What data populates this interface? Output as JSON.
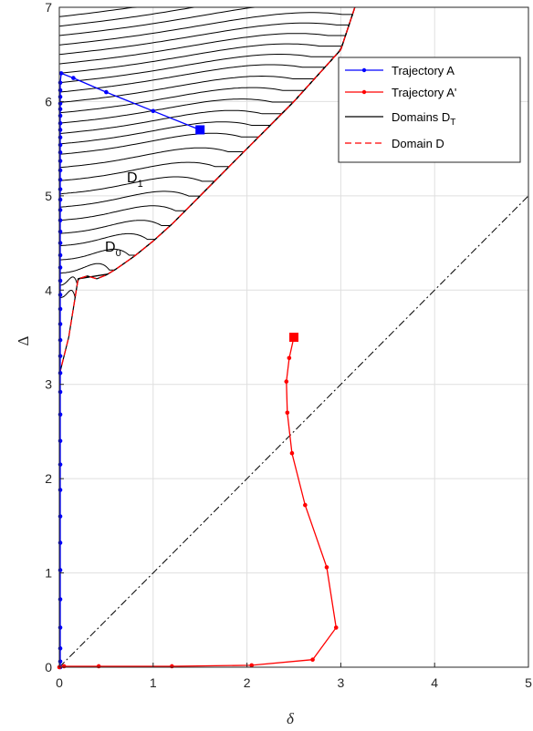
{
  "chart_data": {
    "type": "line",
    "xlabel": "δ",
    "ylabel": "Δ",
    "xlim": [
      0,
      5
    ],
    "ylim": [
      0,
      7
    ],
    "xticks": [
      "0",
      "1",
      "2",
      "3",
      "4",
      "5"
    ],
    "yticks": [
      "0",
      "1",
      "2",
      "3",
      "4",
      "5",
      "6",
      "7"
    ],
    "grid": true,
    "legend_position": "top-right",
    "legend": [
      {
        "label": "Trajectory A",
        "color": "#0000ff",
        "style": "solid-dot"
      },
      {
        "label": "Trajectory A'",
        "color": "#ff0000",
        "style": "solid-dot"
      },
      {
        "label": "Domains D",
        "label_sub": "T",
        "color": "#000000",
        "style": "solid"
      },
      {
        "label": "Domain D",
        "color": "#ff0000",
        "style": "dashed"
      }
    ],
    "annotations": [
      {
        "text": "D",
        "sub": "1",
        "x": 0.72,
        "y": 5.15
      },
      {
        "text": "D",
        "sub": "0",
        "x": 0.48,
        "y": 4.52
      }
    ],
    "series": [
      {
        "name": "Trajectory A",
        "color": "#0000ff",
        "x": [
          1.5,
          1.0,
          0.5,
          0.15,
          0.02,
          0.01,
          0.01,
          0.01,
          0.01,
          0.01,
          0.01,
          0.01,
          0.01,
          0.01,
          0.01,
          0.01,
          0.01,
          0.01,
          0.01,
          0.01,
          0.01,
          0.01,
          0.01,
          0.01,
          0.01,
          0.01,
          0.01,
          0.01,
          0.01,
          0.01,
          0.01,
          0.01,
          0.01,
          0.01,
          0.01,
          0.01,
          0.01,
          0.01,
          0.01,
          0.01,
          0.01,
          0.01,
          0.01,
          0.01,
          0.01,
          0.01,
          0.01
        ],
        "y": [
          5.7,
          5.9,
          6.1,
          6.25,
          6.3,
          6.2,
          6.12,
          6.05,
          5.98,
          5.92,
          5.85,
          5.77,
          5.7,
          5.62,
          5.54,
          5.46,
          5.37,
          5.27,
          5.17,
          5.07,
          4.96,
          4.85,
          4.74,
          4.62,
          4.5,
          4.37,
          4.24,
          4.1,
          3.95,
          3.8,
          3.64,
          3.47,
          3.3,
          3.12,
          2.92,
          2.68,
          2.4,
          2.15,
          1.88,
          1.6,
          1.32,
          1.03,
          0.72,
          0.42,
          0.2,
          0.06,
          0.0
        ]
      },
      {
        "name": "Trajectory A'",
        "color": "#ff0000",
        "x": [
          2.5,
          2.45,
          2.42,
          2.43,
          2.48,
          2.62,
          2.85,
          2.95,
          2.7,
          2.05,
          1.2,
          0.42,
          0.05,
          0.0
        ],
        "y": [
          3.5,
          3.28,
          3.03,
          2.7,
          2.27,
          1.72,
          1.06,
          0.42,
          0.08,
          0.02,
          0.01,
          0.01,
          0.01,
          0.0
        ]
      },
      {
        "name": "Domain D",
        "color": "#ff0000",
        "x": [
          0.0,
          0.1,
          0.2,
          0.3,
          0.4,
          0.5,
          0.6,
          0.8,
          1.0,
          1.2,
          1.5,
          2.0,
          2.5,
          3.0,
          3.15
        ],
        "y": [
          3.1,
          3.5,
          4.12,
          4.15,
          4.12,
          4.16,
          4.22,
          4.36,
          4.52,
          4.7,
          5.0,
          5.5,
          6.0,
          6.55,
          7.0
        ]
      },
      {
        "name": "Reference line",
        "color": "#000000",
        "x": [
          0,
          5
        ],
        "y": [
          0,
          5
        ]
      }
    ],
    "domain_levels": [
      3.92,
      4.05,
      4.18,
      4.32,
      4.47,
      4.6,
      4.74,
      4.88,
      5.02,
      5.16,
      5.3,
      5.44,
      5.55,
      5.66,
      5.77,
      5.88,
      5.99,
      6.1,
      6.2,
      6.3,
      6.4,
      6.5,
      6.6,
      6.7,
      6.8,
      6.9
    ]
  }
}
